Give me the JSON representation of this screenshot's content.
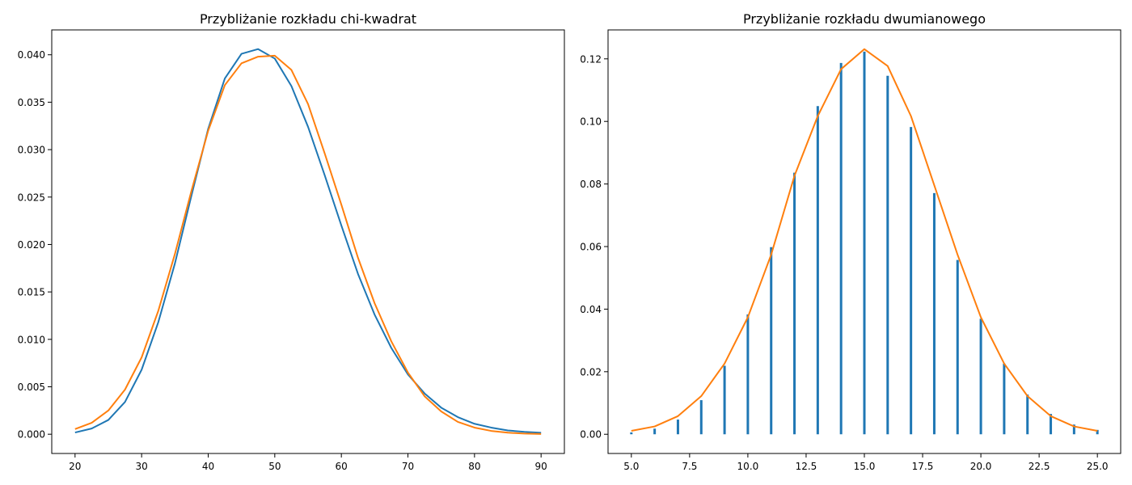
{
  "colors": {
    "series1": "#1f77b4",
    "series2": "#ff7f0e",
    "axis": "#000000",
    "background": "#ffffff"
  },
  "chart_data": [
    {
      "type": "line",
      "title": "Przybliżanie rozkładu chi-kwadrat",
      "xlabel": "",
      "ylabel": "",
      "xlim": [
        16.5,
        93.5
      ],
      "ylim": [
        -0.00203,
        0.04262
      ],
      "xticks": [
        20,
        30,
        40,
        50,
        60,
        70,
        80,
        90
      ],
      "xtick_labels": [
        "20",
        "30",
        "40",
        "50",
        "60",
        "70",
        "80",
        "90"
      ],
      "yticks": [
        0,
        0.005,
        0.01,
        0.015,
        0.02,
        0.025,
        0.03,
        0.035,
        0.04
      ],
      "ytick_labels": [
        "0.000",
        "0.005",
        "0.010",
        "0.015",
        "0.020",
        "0.025",
        "0.030",
        "0.035",
        "0.040"
      ],
      "grid": false,
      "legend": "none",
      "x": [
        20,
        22.5,
        25,
        27.5,
        30,
        32.5,
        35,
        37.5,
        40,
        42.5,
        45,
        47.5,
        50,
        52.5,
        55,
        57.5,
        60,
        62.5,
        65,
        67.5,
        70,
        72.5,
        75,
        77.5,
        80,
        82.5,
        85,
        87.5,
        90
      ],
      "series": [
        {
          "values": [
            0.00018,
            0.0006,
            0.0015,
            0.0034,
            0.0068,
            0.0118,
            0.018,
            0.0252,
            0.0322,
            0.0375,
            0.0401,
            0.0406,
            0.0396,
            0.0367,
            0.0324,
            0.0273,
            0.022,
            0.0169,
            0.0126,
            0.0091,
            0.0063,
            0.0043,
            0.0028,
            0.0018,
            0.0011,
            0.0007,
            0.0004,
            0.00025,
            0.00015
          ]
        },
        {
          "values": [
            0.00054,
            0.0012,
            0.0025,
            0.0047,
            0.0081,
            0.013,
            0.019,
            0.0257,
            0.032,
            0.0368,
            0.0391,
            0.0398,
            0.0399,
            0.0384,
            0.0348,
            0.0296,
            0.0242,
            0.0186,
            0.0138,
            0.0098,
            0.0065,
            0.004,
            0.0024,
            0.0013,
            0.0007,
            0.00035,
            0.00016,
            7e-05,
            3e-05
          ]
        }
      ]
    },
    {
      "type": "bar",
      "title": "Przybliżanie rozkładu dwumianowego",
      "xlabel": "",
      "ylabel": "",
      "xlim": [
        4.0,
        26.0
      ],
      "ylim": [
        -0.00614,
        0.12925
      ],
      "xticks": [
        5.0,
        7.5,
        10.0,
        12.5,
        15.0,
        17.5,
        20.0,
        22.5,
        25.0
      ],
      "xtick_labels": [
        "5.0",
        "7.5",
        "10.0",
        "12.5",
        "15.0",
        "17.5",
        "20.0",
        "22.5",
        "25.0"
      ],
      "yticks": [
        0,
        0.02,
        0.04,
        0.06,
        0.08,
        0.1,
        0.12
      ],
      "ytick_labels": [
        "0.00",
        "0.02",
        "0.04",
        "0.06",
        "0.08",
        "0.10",
        "0.12"
      ],
      "grid": false,
      "legend": "none",
      "x": [
        5,
        6,
        7,
        8,
        9,
        10,
        11,
        12,
        13,
        14,
        15,
        16,
        17,
        18,
        19,
        20,
        21,
        22,
        23,
        24,
        25
      ],
      "series": [
        {
          "style": "bars",
          "values": [
            0.0006,
            0.0018,
            0.0047,
            0.0109,
            0.0219,
            0.0383,
            0.0598,
            0.0836,
            0.1049,
            0.1187,
            0.1223,
            0.1146,
            0.0982,
            0.0771,
            0.0557,
            0.0369,
            0.0226,
            0.0127,
            0.0065,
            0.0031,
            0.0014
          ]
        },
        {
          "style": "line",
          "values": [
            0.0011,
            0.0025,
            0.0058,
            0.0122,
            0.0226,
            0.0374,
            0.0574,
            0.0826,
            0.1017,
            0.1167,
            0.1231,
            0.1177,
            0.1017,
            0.0796,
            0.0574,
            0.0374,
            0.0226,
            0.0122,
            0.0058,
            0.0025,
            0.0011
          ]
        }
      ]
    }
  ]
}
